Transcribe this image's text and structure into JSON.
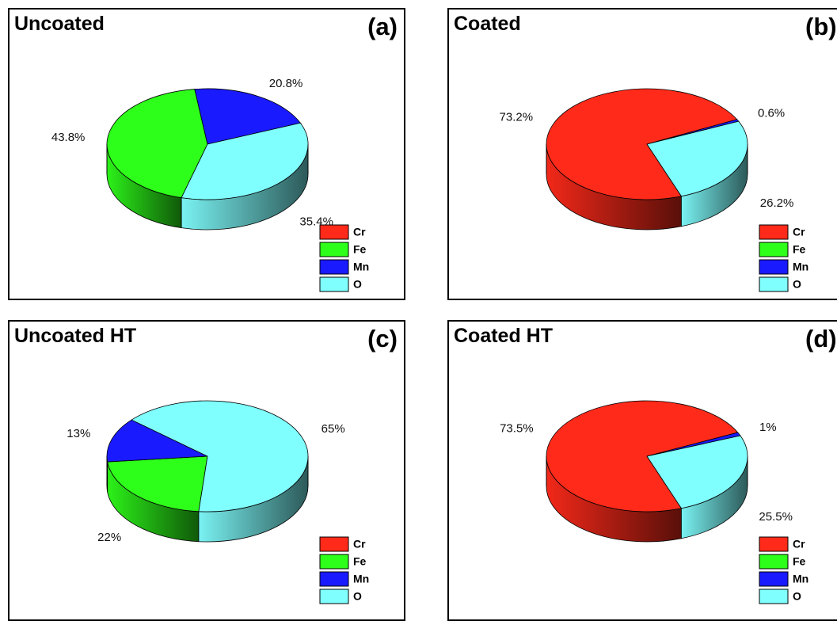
{
  "legend": [
    "Cr",
    "Fe",
    "Mn",
    "O"
  ],
  "colors": {
    "Cr": "#ff2a1a",
    "Fe": "#2eff1a",
    "Mn": "#1a1aff",
    "O": "#80ffff"
  },
  "chart_data": [
    {
      "type": "pie",
      "title": "Uncoated",
      "panel_label": "(a)",
      "categories": [
        "Cr",
        "Fe",
        "Mn",
        "O"
      ],
      "values": [
        0,
        43.8,
        20.8,
        35.4
      ],
      "labels": [
        "",
        "43.8%",
        "20.8%",
        "35.4%"
      ],
      "legend": "bottom-right"
    },
    {
      "type": "pie",
      "title": "Coated",
      "panel_label": "(b)",
      "categories": [
        "Cr",
        "Fe",
        "Mn",
        "O"
      ],
      "values": [
        73.2,
        0,
        0.6,
        26.2
      ],
      "labels": [
        "73.2%",
        "",
        "0.6%",
        "26.2%"
      ],
      "legend": "bottom-right"
    },
    {
      "type": "pie",
      "title": "Uncoated HT",
      "panel_label": "(c)",
      "categories": [
        "Cr",
        "Fe",
        "Mn",
        "O"
      ],
      "values": [
        0,
        22,
        13,
        65
      ],
      "labels": [
        "",
        "22%",
        "13%",
        "65%"
      ],
      "legend": "bottom-right"
    },
    {
      "type": "pie",
      "title": "Coated HT",
      "panel_label": "(d)",
      "categories": [
        "Cr",
        "Fe",
        "Mn",
        "O"
      ],
      "values": [
        73.5,
        0,
        1,
        25.5
      ],
      "labels": [
        "73.5%",
        "",
        "1%",
        "25.5%"
      ],
      "legend": "bottom-right"
    }
  ]
}
